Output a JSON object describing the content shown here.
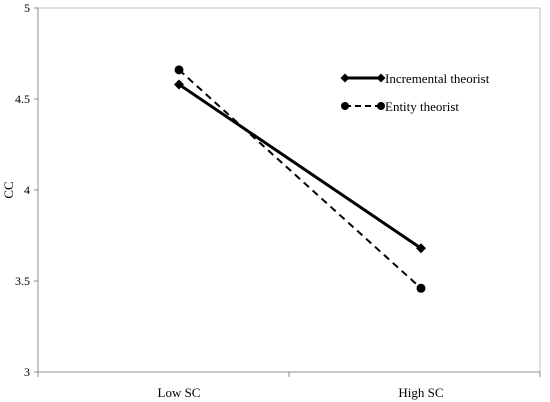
{
  "chart_data": {
    "type": "line",
    "title": "",
    "xlabel": "",
    "ylabel": "CC",
    "categories": [
      "Low SC",
      "High SC"
    ],
    "ylim": [
      3,
      5
    ],
    "yticks": [
      3,
      3.5,
      4,
      4.5,
      5
    ],
    "ytick_labels": [
      "3",
      "3.5",
      "4",
      "4.5",
      "5"
    ],
    "grid": false,
    "legend_position": "top-right",
    "series": [
      {
        "name": "Incremental theorist",
        "values": [
          4.58,
          3.68
        ],
        "style": "solid",
        "marker": "diamond",
        "color": "#000000"
      },
      {
        "name": "Entity theorist",
        "values": [
          4.66,
          3.46
        ],
        "style": "dashed",
        "marker": "circle",
        "color": "#000000"
      }
    ]
  }
}
